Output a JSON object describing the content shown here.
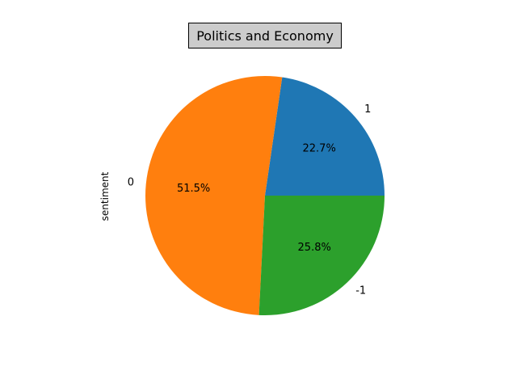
{
  "chart_data": {
    "type": "pie",
    "title": "Politics and Economy",
    "ylabel": "sentiment",
    "slices": [
      {
        "label": "1",
        "percent": 22.7,
        "pct_label": "22.7%",
        "color": "#1f77b4"
      },
      {
        "label": "0",
        "percent": 51.5,
        "pct_label": "51.5%",
        "color": "#ff7f0e"
      },
      {
        "label": "-1",
        "percent": 25.8,
        "pct_label": "25.8%",
        "color": "#2ca02c"
      }
    ],
    "start_angle": 0,
    "direction": "counterclockwise"
  }
}
